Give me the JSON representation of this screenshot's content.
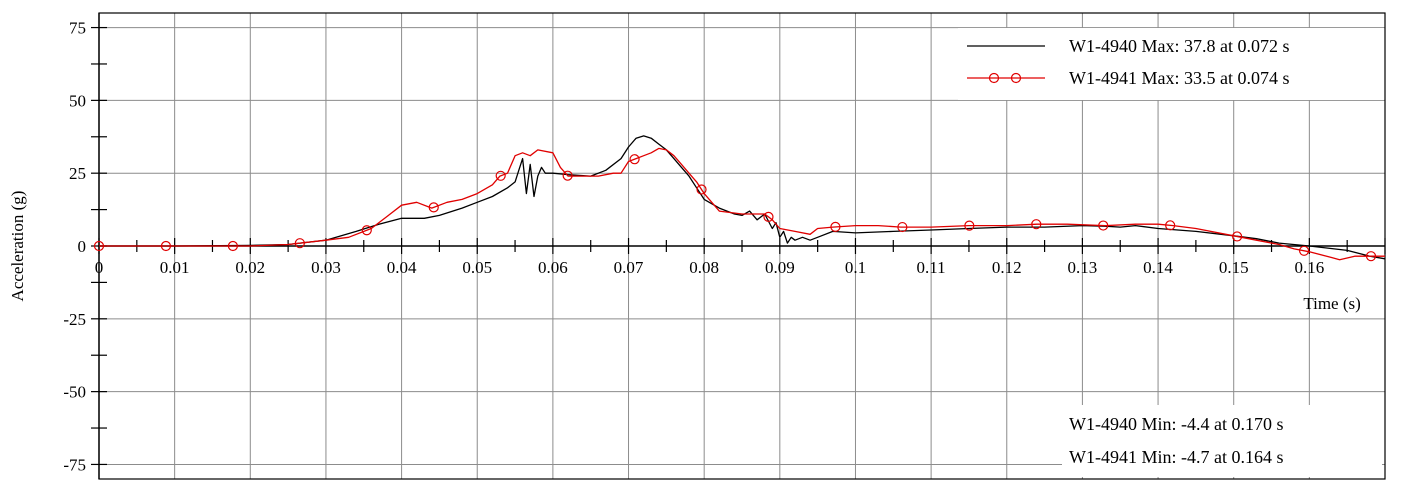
{
  "chart_data": {
    "type": "line",
    "title": "",
    "xlabel": "Time (s)",
    "ylabel": "Acceleration (g)",
    "xlim": [
      0,
      0.17
    ],
    "ylim": [
      -80,
      80
    ],
    "grid": true,
    "legend_position": "top-right",
    "x_tick_labels": [
      "0",
      "0.01",
      "0.02",
      "0.03",
      "0.04",
      "0.05",
      "0.06",
      "0.07",
      "0.08",
      "0.09",
      "0.1",
      "0.11",
      "0.12",
      "0.13",
      "0.14",
      "0.15",
      "0.16"
    ],
    "y_tick_labels": [
      "75",
      "50",
      "25",
      "0",
      "-25",
      "-50",
      "-75"
    ],
    "series": [
      {
        "name": "W1-4940 Max: 37.8 at 0.072 s",
        "color": "#000000",
        "marker": "none",
        "x": [
          0,
          0.01,
          0.02,
          0.025,
          0.03,
          0.034,
          0.037,
          0.04,
          0.043,
          0.045,
          0.048,
          0.05,
          0.052,
          0.054,
          0.055,
          0.0555,
          0.056,
          0.0565,
          0.057,
          0.0575,
          0.058,
          0.0585,
          0.059,
          0.06,
          0.062,
          0.065,
          0.067,
          0.069,
          0.07,
          0.071,
          0.072,
          0.073,
          0.074,
          0.075,
          0.076,
          0.077,
          0.078,
          0.079,
          0.08,
          0.082,
          0.084,
          0.085,
          0.086,
          0.087,
          0.088,
          0.089,
          0.0895,
          0.09,
          0.0905,
          0.091,
          0.0915,
          0.092,
          0.093,
          0.094,
          0.095,
          0.097,
          0.1,
          0.105,
          0.11,
          0.115,
          0.12,
          0.125,
          0.13,
          0.133,
          0.135,
          0.137,
          0.14,
          0.145,
          0.15,
          0.153,
          0.156,
          0.16,
          0.165,
          0.168,
          0.17
        ],
        "y": [
          0,
          0,
          0.2,
          0.5,
          2,
          5,
          7.5,
          9.5,
          9.5,
          10.5,
          13,
          15,
          17,
          20,
          22,
          26,
          30,
          18,
          28,
          17,
          24,
          27,
          25,
          25,
          24.5,
          24,
          26,
          30,
          34,
          37,
          37.8,
          37,
          35,
          33,
          30,
          27,
          24,
          20,
          16,
          13,
          11,
          10.5,
          12,
          9,
          11,
          6,
          8,
          3,
          5,
          1,
          3,
          2,
          3,
          2,
          3,
          5,
          4.5,
          5,
          5.5,
          6,
          6.5,
          6.5,
          7,
          6.8,
          6.5,
          7,
          6,
          5,
          3.5,
          2.5,
          1,
          0,
          -1.5,
          -3.5,
          -4.4
        ]
      },
      {
        "name": "W1-4941 Max: 33.5 at 0.074 s",
        "color": "#e00000",
        "marker": "circle",
        "x": [
          0,
          0.01,
          0.02,
          0.025,
          0.03,
          0.033,
          0.036,
          0.038,
          0.04,
          0.042,
          0.044,
          0.046,
          0.048,
          0.05,
          0.052,
          0.053,
          0.054,
          0.055,
          0.056,
          0.057,
          0.058,
          0.06,
          0.061,
          0.062,
          0.064,
          0.066,
          0.068,
          0.069,
          0.07,
          0.071,
          0.072,
          0.073,
          0.074,
          0.075,
          0.076,
          0.077,
          0.078,
          0.079,
          0.08,
          0.082,
          0.085,
          0.087,
          0.088,
          0.089,
          0.09,
          0.092,
          0.094,
          0.095,
          0.097,
          0.1,
          0.103,
          0.106,
          0.11,
          0.115,
          0.12,
          0.124,
          0.128,
          0.133,
          0.137,
          0.14,
          0.142,
          0.145,
          0.15,
          0.153,
          0.156,
          0.158,
          0.16,
          0.163,
          0.164,
          0.166,
          0.168,
          0.17
        ],
        "y": [
          0,
          0,
          0,
          0.5,
          2,
          3,
          6,
          10,
          14,
          15,
          13,
          15,
          16,
          18,
          21,
          24,
          25,
          31,
          32,
          31,
          33,
          32,
          27,
          24,
          24,
          24,
          25,
          25,
          29,
          30,
          31,
          32,
          33.5,
          33,
          31,
          28,
          25,
          22,
          18,
          12,
          11,
          11,
          11,
          9,
          6,
          5,
          4,
          6,
          6.5,
          7,
          7,
          6.5,
          6.5,
          7,
          7,
          7.5,
          7.5,
          7,
          7.5,
          7.5,
          7,
          6,
          3.5,
          2,
          0.5,
          -1,
          -2,
          -4,
          -4.7,
          -3.5,
          -3.5,
          -3.5
        ]
      }
    ],
    "annotations": [
      "W1-4940 Min: -4.4 at 0.170 s",
      "W1-4941 Min: -4.7 at 0.164 s"
    ]
  }
}
